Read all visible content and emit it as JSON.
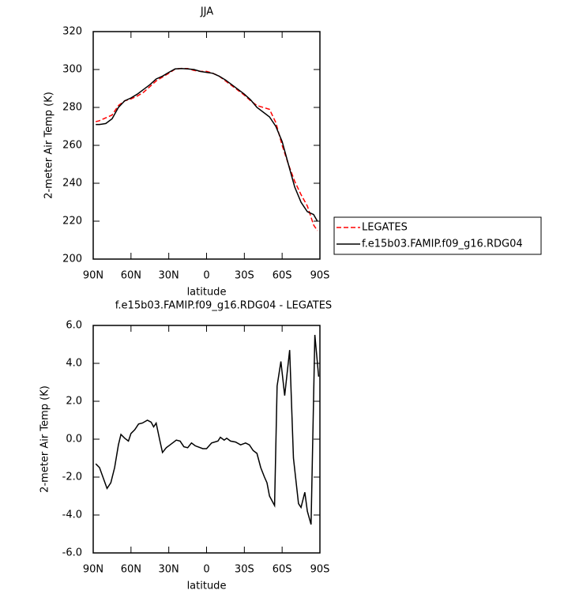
{
  "chart_data": [
    {
      "type": "line",
      "title": "JJA",
      "xlabel": "latitude",
      "ylabel": "2-meter Air Temp (K)",
      "x": [
        88,
        85,
        80,
        75,
        70,
        65,
        60,
        55,
        50,
        45,
        40,
        35,
        30,
        25,
        20,
        15,
        10,
        5,
        0,
        -5,
        -10,
        -15,
        -20,
        -25,
        -30,
        -35,
        -40,
        -45,
        -50,
        -55,
        -60,
        -65,
        -70,
        -75,
        -80,
        -85,
        -88
      ],
      "series": [
        {
          "name": "LEGATES",
          "color": "#ff0000",
          "dash": true,
          "values": [
            272.5,
            273,
            274.5,
            276,
            281,
            283.5,
            284.5,
            286,
            288,
            291,
            294,
            296,
            298,
            300.2,
            300.6,
            300.5,
            299.5,
            299,
            299,
            298,
            296.5,
            294,
            291.5,
            289,
            286.5,
            283.5,
            281,
            280,
            279,
            272,
            260,
            250,
            241,
            234,
            228,
            218,
            215
          ]
        },
        {
          "name": "f.e15b03.FAMIP.f09_g16.RDG04",
          "color": "#000000",
          "dash": false,
          "values": [
            271,
            271,
            271.5,
            274,
            280,
            283.5,
            285,
            287,
            289.5,
            292,
            295,
            296.5,
            298.5,
            300.3,
            300.5,
            300.3,
            300,
            299,
            298.5,
            298,
            296.5,
            294.5,
            292,
            289.5,
            287,
            284,
            280,
            277.5,
            275,
            270,
            262,
            250,
            238,
            230,
            225,
            223.5,
            220
          ]
        }
      ],
      "xlim": [
        90,
        -90
      ],
      "xticks": [
        {
          "value": 90,
          "label": "90N"
        },
        {
          "value": 60,
          "label": "60N"
        },
        {
          "value": 30,
          "label": "30N"
        },
        0,
        {
          "value": -30,
          "label": "30S"
        },
        {
          "value": -60,
          "label": "60S"
        },
        {
          "value": -90,
          "label": "90S"
        }
      ],
      "ylim": [
        200,
        320
      ],
      "yticks": [
        200,
        220,
        240,
        260,
        280,
        300,
        320
      ],
      "legend": "right"
    },
    {
      "type": "line",
      "title": "f.e15b03.FAMIP.f09_g16.RDG04 - LEGATES",
      "xlabel": "latitude",
      "ylabel": "2-meter Air Temp (K)",
      "x": [
        88,
        85,
        79,
        76,
        73,
        70,
        68,
        65,
        62,
        60,
        57,
        54,
        51,
        47,
        44,
        42,
        40,
        37,
        35,
        32,
        29,
        24,
        21,
        18,
        15,
        12,
        9,
        7,
        3,
        0,
        -4,
        -9,
        -11,
        -14,
        -16,
        -19,
        -23,
        -27,
        -31,
        -34,
        -37,
        -40,
        -43,
        -46,
        -48,
        -50,
        -54,
        -56,
        -59,
        -62,
        -66,
        -69,
        -73,
        -75,
        -78,
        -80,
        -83,
        -86,
        -89
      ],
      "values": [
        -1.3,
        -1.5,
        -2.6,
        -2.3,
        -1.5,
        -0.3,
        0.25,
        0.05,
        -0.1,
        0.3,
        0.5,
        0.8,
        0.85,
        1.0,
        0.9,
        0.65,
        0.85,
        -0.1,
        -0.7,
        -0.45,
        -0.3,
        -0.05,
        -0.1,
        -0.4,
        -0.45,
        -0.2,
        -0.35,
        -0.4,
        -0.5,
        -0.5,
        -0.2,
        -0.1,
        0.1,
        -0.05,
        0.05,
        -0.1,
        -0.15,
        -0.3,
        -0.2,
        -0.3,
        -0.6,
        -0.75,
        -1.5,
        -2.0,
        -2.3,
        -3.0,
        -3.5,
        2.8,
        4.1,
        2.3,
        4.7,
        -1.0,
        -3.4,
        -3.6,
        -2.8,
        -3.8,
        -4.5,
        5.5,
        3.3
      ],
      "color": "#000000",
      "xlim": [
        90,
        -90
      ],
      "xticks": [
        {
          "value": 90,
          "label": "90N"
        },
        {
          "value": 60,
          "label": "60N"
        },
        {
          "value": 30,
          "label": "30N"
        },
        0,
        {
          "value": -30,
          "label": "30S"
        },
        {
          "value": -60,
          "label": "60S"
        },
        {
          "value": -90,
          "label": "90S"
        }
      ],
      "ylim": [
        -6,
        6
      ],
      "yticks": [
        {
          "value": -6,
          "label": "-6.0"
        },
        {
          "value": -4,
          "label": "-4.0"
        },
        {
          "value": -2,
          "label": "-2.0"
        },
        {
          "value": 0,
          "label": "0.0"
        },
        {
          "value": 2,
          "label": "2.0"
        },
        {
          "value": 4,
          "label": "4.0"
        },
        {
          "value": 6,
          "label": "6.0"
        }
      ]
    }
  ]
}
